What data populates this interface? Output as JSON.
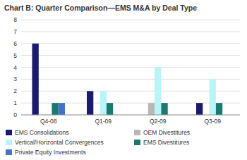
{
  "chart_data": {
    "type": "bar",
    "title": "Chart B: Quarter Comparison—EMS M&A by Deal Type",
    "categories": [
      "Q4-08",
      "Q1-09",
      "Q2-09",
      "Q3-09"
    ],
    "series": [
      {
        "name": "EMS Consolidations",
        "color": "#1a1a6e",
        "values": [
          6,
          2,
          0,
          1
        ]
      },
      {
        "name": "OEM Divestitures",
        "color": "#b8b8b8",
        "values": [
          0,
          0,
          1,
          0
        ]
      },
      {
        "name": "Vertical/Horizontal Convergences",
        "color": "#b8f4f8",
        "values": [
          0,
          2,
          4,
          3
        ]
      },
      {
        "name": "EMS Divestitures",
        "color": "#1a7a70",
        "values": [
          1,
          1,
          1,
          1
        ]
      },
      {
        "name": "Private Equity Investments",
        "color": "#4472c4",
        "values": [
          1,
          0,
          0,
          0
        ]
      }
    ],
    "ylim": [
      0,
      8
    ],
    "yticks": [
      0,
      1,
      2,
      3,
      4,
      5,
      6,
      7,
      8
    ],
    "grid": true,
    "legend": "bottom"
  }
}
